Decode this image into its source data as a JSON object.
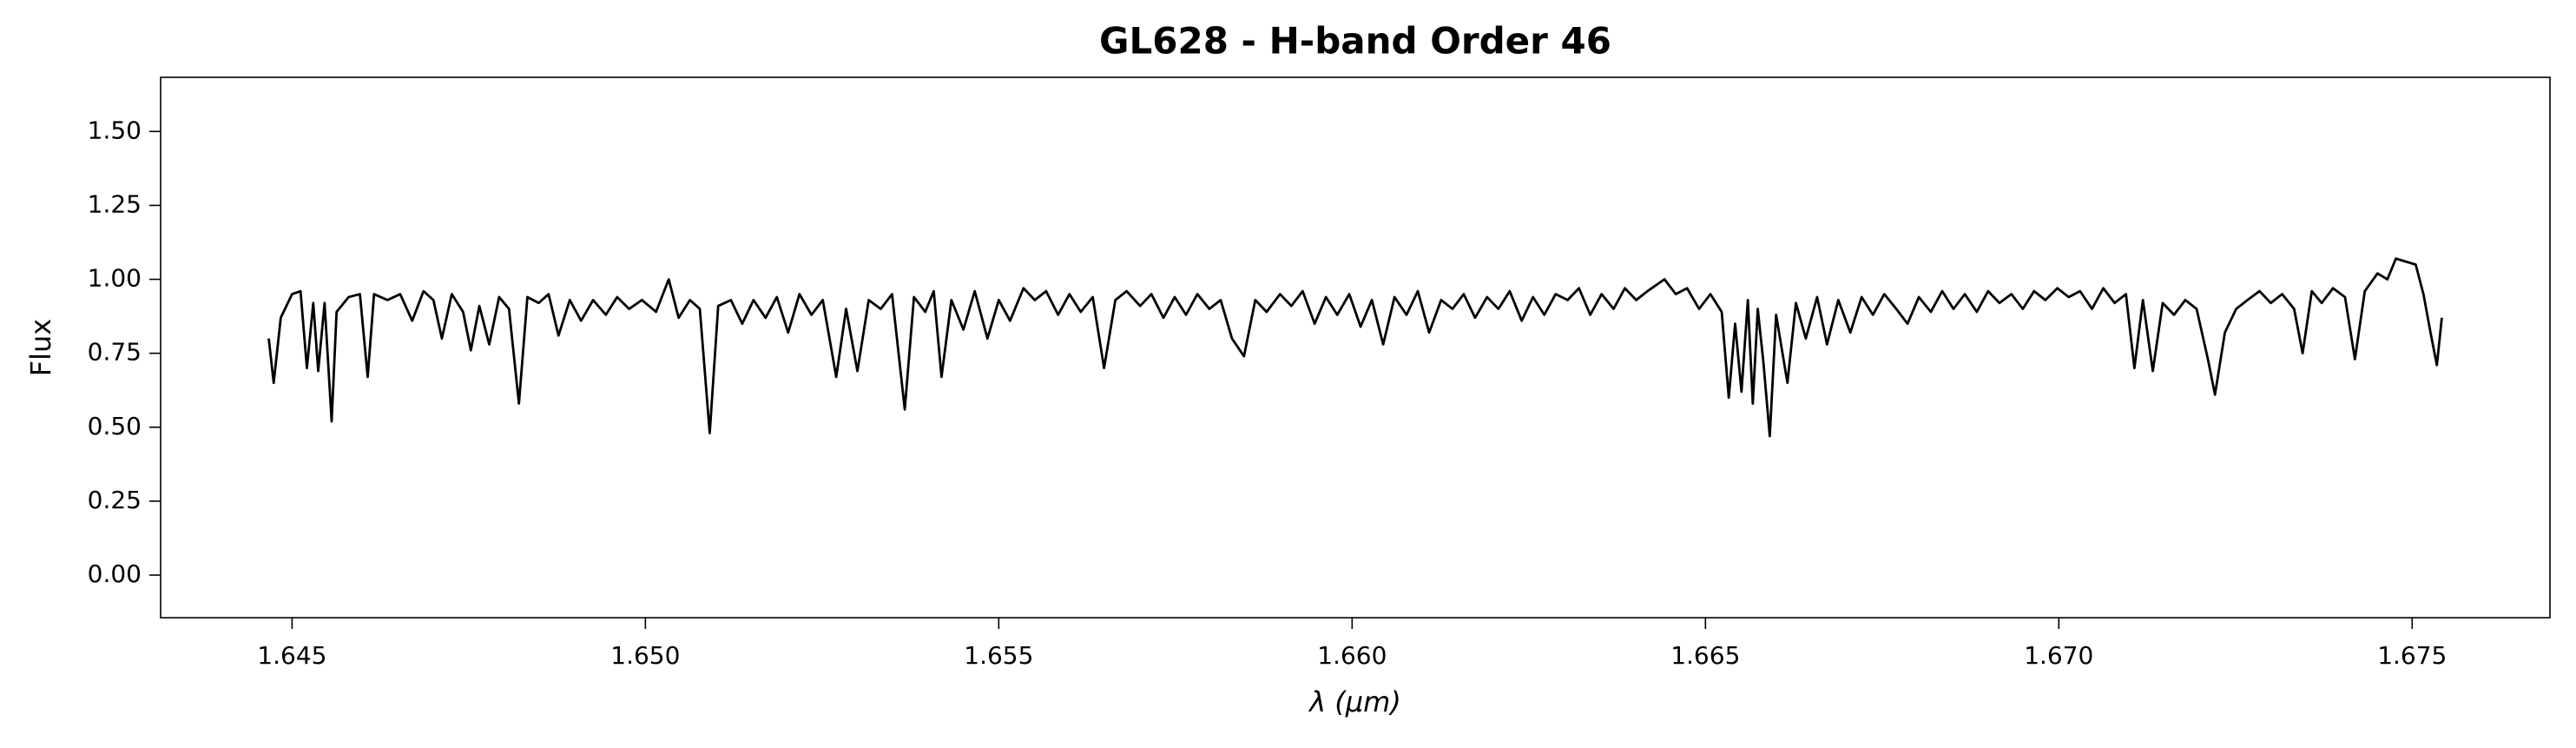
{
  "chart_data": {
    "type": "line",
    "title": "GL628 - H-band Order 46",
    "x_label": "λ (μm)",
    "y_label": "Flux",
    "color": "#000000",
    "xlim": [
      1.64314,
      1.67695
    ],
    "ylim": [
      -0.144,
      1.683
    ],
    "xticks": [
      1.645,
      {
        "value": 1.65,
        "label": "1.650"
      },
      1.655,
      {
        "value": 1.66,
        "label": "1.660"
      },
      1.665,
      {
        "value": 1.67,
        "label": "1.670"
      },
      1.675
    ],
    "yticks": [
      {
        "value": 0,
        "label": "0.00"
      },
      0.25,
      {
        "value": 0.5,
        "label": "0.50"
      },
      0.75,
      {
        "value": 1,
        "label": "1.00"
      },
      1.25,
      {
        "value": 1.5,
        "label": "1.50"
      }
    ],
    "x": [
      1.64467,
      1.64474,
      1.64484,
      1.645,
      1.64512,
      1.64521,
      1.6453,
      1.64537,
      1.64546,
      1.64556,
      1.64563,
      1.6458,
      1.64596,
      1.64607,
      1.64616,
      1.64635,
      1.64653,
      1.6467,
      1.64686,
      1.647,
      1.64712,
      1.64726,
      1.64742,
      1.64753,
      1.64765,
      1.64779,
      1.64793,
      1.64807,
      1.64821,
      1.64833,
      1.64849,
      1.64863,
      1.64877,
      1.64893,
      1.64909,
      1.64926,
      1.64944,
      1.6496,
      1.64977,
      1.64995,
      1.65015,
      1.65033,
      1.65047,
      1.65063,
      1.65077,
      1.65091,
      1.65103,
      1.65121,
      1.65137,
      1.65153,
      1.6517,
      1.65186,
      1.65202,
      1.65218,
      1.65235,
      1.65251,
      1.6527,
      1.65284,
      1.653,
      1.65316,
      1.65333,
      1.65349,
      1.65367,
      1.6538,
      1.65396,
      1.65408,
      1.65419,
      1.65433,
      1.6545,
      1.65466,
      1.65484,
      1.655,
      1.65516,
      1.65535,
      1.65551,
      1.65567,
      1.65584,
      1.656,
      1.65616,
      1.65633,
      1.65649,
      1.65665,
      1.65681,
      1.657,
      1.65716,
      1.65733,
      1.65749,
      1.65765,
      1.65781,
      1.65798,
      1.65814,
      1.6583,
      1.65847,
      1.65863,
      1.65879,
      1.65898,
      1.65914,
      1.6593,
      1.65947,
      1.65963,
      1.65979,
      1.65996,
      1.66012,
      1.66028,
      1.66044,
      1.6606,
      1.66077,
      1.66093,
      1.66109,
      1.66126,
      1.66142,
      1.66158,
      1.66174,
      1.66191,
      1.66207,
      1.66223,
      1.6624,
      1.66256,
      1.66272,
      1.66288,
      1.66305,
      1.66321,
      1.66337,
      1.66353,
      1.6637,
      1.66386,
      1.66402,
      1.66418,
      1.66442,
      1.66458,
      1.66474,
      1.66491,
      1.66507,
      1.66523,
      1.66533,
      1.66542,
      1.66551,
      1.6656,
      1.66567,
      1.66574,
      1.66582,
      1.66591,
      1.666,
      1.66616,
      1.66628,
      1.66642,
      1.66658,
      1.66672,
      1.66688,
      1.66705,
      1.66721,
      1.66737,
      1.66753,
      1.6677,
      1.66786,
      1.66802,
      1.66819,
      1.66835,
      1.66851,
      1.66867,
      1.66884,
      1.669,
      1.66916,
      1.66933,
      1.66949,
      1.66965,
      1.66981,
      1.66998,
      1.67014,
      1.6703,
      1.67047,
      1.67063,
      1.67079,
      1.67095,
      1.67107,
      1.67119,
      1.67133,
      1.67147,
      1.67163,
      1.67179,
      1.67195,
      1.67211,
      1.67221,
      1.67235,
      1.67251,
      1.67267,
      1.67284,
      1.673,
      1.67316,
      1.67333,
      1.67345,
      1.67358,
      1.67372,
      1.67388,
      1.67405,
      1.67419,
      1.67433,
      1.67451,
      1.67465,
      1.67477,
      1.67491,
      1.67505,
      1.67516,
      1.67526,
      1.67535,
      1.67542
    ],
    "values": [
      0.8,
      0.65,
      0.87,
      0.95,
      0.96,
      0.7,
      0.92,
      0.69,
      0.92,
      0.52,
      0.89,
      0.94,
      0.95,
      0.67,
      0.95,
      0.93,
      0.95,
      0.86,
      0.96,
      0.93,
      0.8,
      0.95,
      0.89,
      0.76,
      0.91,
      0.78,
      0.94,
      0.9,
      0.58,
      0.94,
      0.92,
      0.95,
      0.81,
      0.93,
      0.86,
      0.93,
      0.88,
      0.94,
      0.9,
      0.93,
      0.89,
      1.0,
      0.87,
      0.93,
      0.9,
      0.48,
      0.91,
      0.93,
      0.85,
      0.93,
      0.87,
      0.94,
      0.82,
      0.95,
      0.88,
      0.93,
      0.67,
      0.9,
      0.69,
      0.93,
      0.9,
      0.95,
      0.56,
      0.94,
      0.89,
      0.96,
      0.67,
      0.93,
      0.83,
      0.96,
      0.8,
      0.93,
      0.86,
      0.97,
      0.93,
      0.96,
      0.88,
      0.95,
      0.89,
      0.94,
      0.7,
      0.93,
      0.96,
      0.91,
      0.95,
      0.87,
      0.94,
      0.88,
      0.95,
      0.9,
      0.93,
      0.8,
      0.74,
      0.93,
      0.89,
      0.95,
      0.91,
      0.96,
      0.85,
      0.94,
      0.88,
      0.95,
      0.84,
      0.93,
      0.78,
      0.94,
      0.88,
      0.96,
      0.82,
      0.93,
      0.9,
      0.95,
      0.87,
      0.94,
      0.9,
      0.96,
      0.86,
      0.94,
      0.88,
      0.95,
      0.93,
      0.97,
      0.88,
      0.95,
      0.9,
      0.97,
      0.93,
      0.96,
      1.0,
      0.95,
      0.97,
      0.9,
      0.95,
      0.89,
      0.6,
      0.85,
      0.62,
      0.93,
      0.58,
      0.9,
      0.72,
      0.47,
      0.88,
      0.65,
      0.92,
      0.8,
      0.94,
      0.78,
      0.93,
      0.82,
      0.94,
      0.88,
      0.95,
      0.9,
      0.85,
      0.94,
      0.89,
      0.96,
      0.9,
      0.95,
      0.89,
      0.96,
      0.92,
      0.95,
      0.9,
      0.96,
      0.93,
      0.97,
      0.94,
      0.96,
      0.9,
      0.97,
      0.92,
      0.95,
      0.7,
      0.93,
      0.69,
      0.92,
      0.88,
      0.93,
      0.9,
      0.73,
      0.61,
      0.82,
      0.9,
      0.93,
      0.96,
      0.92,
      0.95,
      0.9,
      0.75,
      0.96,
      0.92,
      0.97,
      0.94,
      0.73,
      0.96,
      1.02,
      1.0,
      1.07,
      1.06,
      1.05,
      0.95,
      0.82,
      0.71,
      0.87
    ]
  }
}
